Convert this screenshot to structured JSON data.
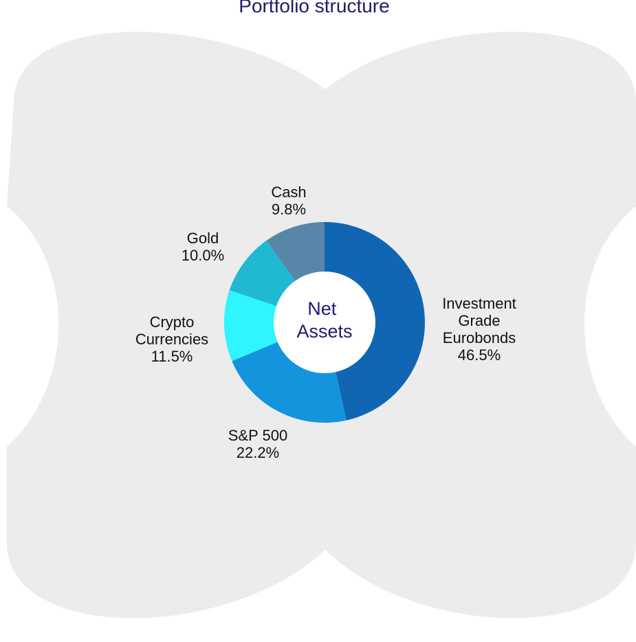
{
  "chart_data": {
    "type": "pie",
    "variant": "donut",
    "title": "Portfolio structure",
    "center_label": [
      "Net",
      "Assets"
    ],
    "labels": [
      "Investment Grade Eurobonds",
      "S&P 500",
      "Crypto Currencies",
      "Gold",
      "Cash"
    ],
    "label_lines": [
      [
        "Investment",
        "Grade",
        "Eurobonds"
      ],
      [
        "S&P 500"
      ],
      [
        "Crypto",
        "Currencies"
      ],
      [
        "Gold"
      ],
      [
        "Cash"
      ]
    ],
    "values": [
      46.5,
      22.2,
      11.5,
      10.0,
      9.8
    ],
    "value_labels": [
      "46.5%",
      "22.2%",
      "11.5%",
      "10.0%",
      "9.8%"
    ],
    "colors": [
      "#1166b3",
      "#1494dd",
      "#2ef5ff",
      "#21b9d1",
      "#5886a8"
    ],
    "start_angle": "12 o'clock",
    "direction": "clockwise",
    "legend": "none"
  },
  "background": {
    "shape": "four-lobed blob",
    "color": "#ececec"
  }
}
